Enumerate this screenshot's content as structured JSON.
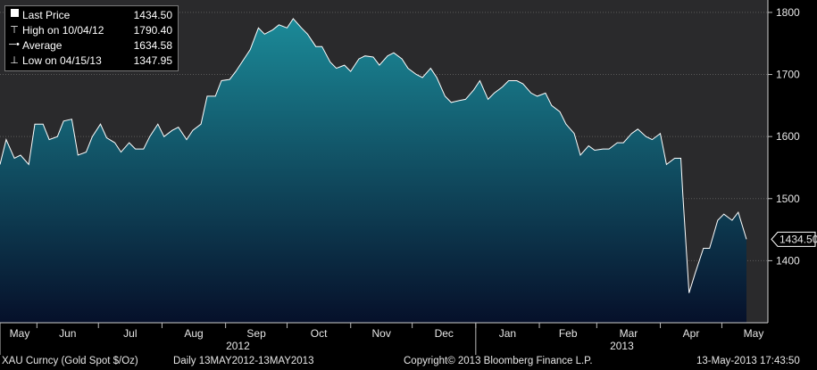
{
  "legend": {
    "items": [
      {
        "symbol": "square",
        "label": "Last Price",
        "value": "1434.50"
      },
      {
        "symbol": "high-marker",
        "label": "High on 10/04/12",
        "value": "1790.40"
      },
      {
        "symbol": "average-marker",
        "label": "Average",
        "value": "1634.58"
      },
      {
        "symbol": "low-marker",
        "label": "Low on 04/15/13",
        "value": "1347.95"
      }
    ]
  },
  "footer": {
    "ticker": "XAU Curncy (Gold Spot  $/Oz)",
    "range": "Daily 13MAY2012-13MAY2013",
    "copyright": "Copyright© 2013 Bloomberg Finance L.P.",
    "timestamp": "13-May-2013 17:43:50"
  },
  "colors": {
    "background": "#000000",
    "plot_background": "#2a2a2c",
    "area_top": "#1b8a98",
    "area_bottom": "#06102a",
    "line": "#ffffff"
  },
  "chart_data": {
    "type": "area",
    "title": "",
    "xlabel": "",
    "ylabel": "",
    "y_axis_position": "right",
    "ylim": [
      1300,
      1820
    ],
    "y_ticks": [
      1400,
      1500,
      1600,
      1700,
      1800
    ],
    "grid": true,
    "legend_position": "top-left",
    "last_value_label": "1434.50",
    "x_tick_labels": [
      "May",
      "Jun",
      "Jul",
      "Aug",
      "Sep",
      "Oct",
      "Nov",
      "Dec",
      "Jan",
      "Feb",
      "Mar",
      "Apr",
      "May"
    ],
    "year_labels": [
      "2012",
      "2013"
    ],
    "series": [
      {
        "x": [
          "2012-05-14",
          "2012-05-17",
          "2012-05-21",
          "2012-05-24",
          "2012-05-28",
          "2012-05-31",
          "2012-06-04",
          "2012-06-07",
          "2012-06-11",
          "2012-06-14",
          "2012-06-18",
          "2012-06-21",
          "2012-06-25",
          "2012-06-28",
          "2012-07-02",
          "2012-07-05",
          "2012-07-09",
          "2012-07-12",
          "2012-07-16",
          "2012-07-19",
          "2012-07-23",
          "2012-07-26",
          "2012-07-30",
          "2012-08-02",
          "2012-08-06",
          "2012-08-09",
          "2012-08-13",
          "2012-08-16",
          "2012-08-20",
          "2012-08-23",
          "2012-08-27",
          "2012-08-30",
          "2012-09-03",
          "2012-09-06",
          "2012-09-10",
          "2012-09-13",
          "2012-09-17",
          "2012-09-20",
          "2012-09-24",
          "2012-09-27",
          "2012-10-01",
          "2012-10-04",
          "2012-10-08",
          "2012-10-11",
          "2012-10-15",
          "2012-10-18",
          "2012-10-22",
          "2012-10-25",
          "2012-10-29",
          "2012-11-01",
          "2012-11-05",
          "2012-11-08",
          "2012-11-12",
          "2012-11-15",
          "2012-11-19",
          "2012-11-22",
          "2012-11-26",
          "2012-11-29",
          "2012-12-03",
          "2012-12-06",
          "2012-12-10",
          "2012-12-13",
          "2012-12-17",
          "2012-12-20",
          "2012-12-24",
          "2012-12-27",
          "2012-12-31",
          "2013-01-03",
          "2013-01-07",
          "2013-01-10",
          "2013-01-14",
          "2013-01-17",
          "2013-01-21",
          "2013-01-24",
          "2013-01-28",
          "2013-01-31",
          "2013-02-04",
          "2013-02-07",
          "2013-02-11",
          "2013-02-14",
          "2013-02-18",
          "2013-02-21",
          "2013-02-25",
          "2013-02-28",
          "2013-03-04",
          "2013-03-07",
          "2013-03-11",
          "2013-03-14",
          "2013-03-18",
          "2013-03-21",
          "2013-03-25",
          "2013-03-28",
          "2013-04-01",
          "2013-04-04",
          "2013-04-08",
          "2013-04-11",
          "2013-04-12",
          "2013-04-15",
          "2013-04-18",
          "2013-04-22",
          "2013-04-25",
          "2013-04-29",
          "2013-05-02",
          "2013-05-06",
          "2013-05-09",
          "2013-05-13"
        ],
        "y": [
          1555,
          1595,
          1565,
          1570,
          1555,
          1620,
          1620,
          1595,
          1600,
          1625,
          1628,
          1570,
          1575,
          1600,
          1620,
          1598,
          1590,
          1575,
          1590,
          1580,
          1580,
          1600,
          1620,
          1600,
          1610,
          1615,
          1595,
          1610,
          1620,
          1665,
          1665,
          1690,
          1692,
          1705,
          1725,
          1740,
          1775,
          1765,
          1772,
          1780,
          1775,
          1790,
          1775,
          1765,
          1745,
          1745,
          1720,
          1710,
          1715,
          1705,
          1725,
          1730,
          1728,
          1715,
          1730,
          1735,
          1725,
          1710,
          1700,
          1695,
          1710,
          1695,
          1665,
          1655,
          1658,
          1660,
          1675,
          1690,
          1660,
          1670,
          1680,
          1690,
          1690,
          1685,
          1670,
          1665,
          1670,
          1650,
          1640,
          1620,
          1605,
          1570,
          1585,
          1578,
          1580,
          1580,
          1590,
          1590,
          1605,
          1612,
          1600,
          1595,
          1605,
          1555,
          1565,
          1565,
          1505,
          1347.95,
          1380,
          1420,
          1420,
          1465,
          1475,
          1465,
          1478,
          1434.5
        ]
      }
    ]
  }
}
